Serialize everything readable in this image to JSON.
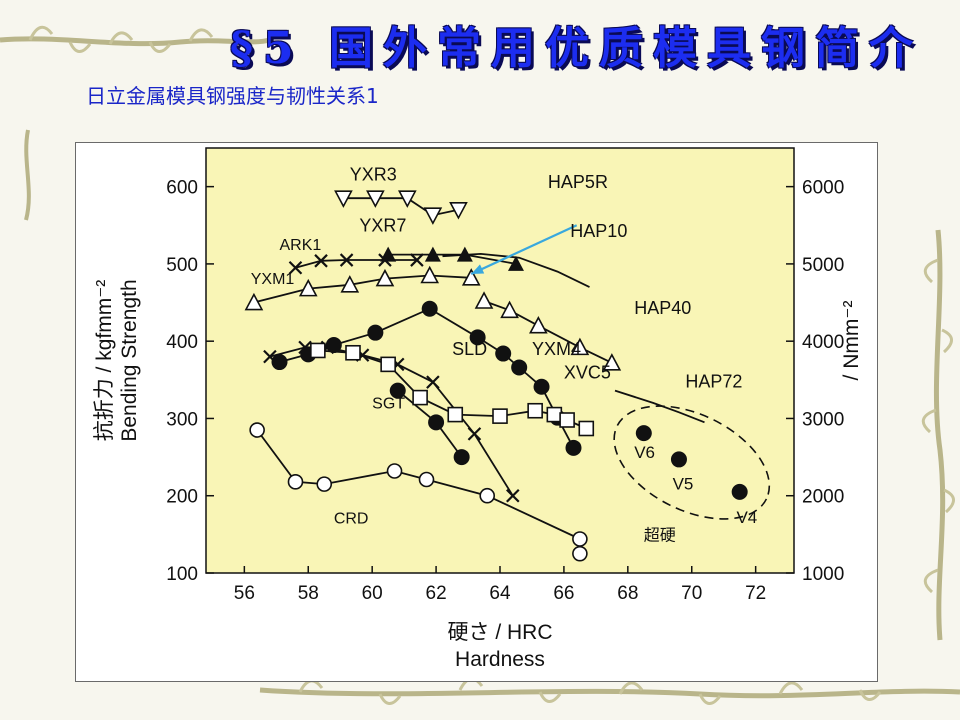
{
  "slide": {
    "title": "§5 国外常用优质模具钢简介",
    "subtitle": "日立金属模具钢强度与韧性关系1"
  },
  "colors": {
    "title": "#1c2df0",
    "subtitle": "#1a26c8",
    "plot_bg": "#f9f5b6",
    "ink": "#111111",
    "arrow": "#39a8de"
  },
  "chart_data": {
    "type": "scatter",
    "xlabel": "硬さ / HRC",
    "xlabel2": "Hardness",
    "ylabel": "抗折力 / kgfmm⁻²",
    "ylabel2": "Bending Strength",
    "y2label": "/ Nmm⁻²",
    "xlim": [
      54.8,
      73.2
    ],
    "ylim": [
      100,
      650
    ],
    "y2lim": [
      1000,
      6500
    ],
    "xticks": [
      56,
      58,
      60,
      62,
      64,
      66,
      68,
      70,
      72
    ],
    "yticks": [
      100,
      200,
      300,
      400,
      500,
      600
    ],
    "y2ticks": [
      1000,
      2000,
      3000,
      4000,
      5000,
      6000
    ],
    "grid": false,
    "series": [
      {
        "name": "YXR3",
        "marker": "tri-down-open",
        "line": true,
        "points": [
          [
            59.1,
            585
          ],
          [
            60.1,
            585
          ],
          [
            61.1,
            585
          ],
          [
            61.9,
            563
          ],
          [
            62.7,
            570
          ]
        ]
      },
      {
        "name": "YXR7",
        "marker": "tri-up-filled",
        "line": true,
        "points": [
          [
            60.5,
            512
          ],
          [
            61.9,
            512
          ],
          [
            62.9,
            512
          ],
          [
            64.5,
            500
          ]
        ]
      },
      {
        "name": "ARK1",
        "marker": "x",
        "line": true,
        "points": [
          [
            57.6,
            495
          ],
          [
            58.4,
            504
          ],
          [
            59.2,
            505
          ],
          [
            60.4,
            505
          ],
          [
            61.4,
            505
          ]
        ]
      },
      {
        "name": "YXM1",
        "marker": "tri-up-open",
        "line": true,
        "points": [
          [
            56.3,
            450
          ],
          [
            58.0,
            468
          ],
          [
            59.3,
            473
          ],
          [
            60.4,
            481
          ],
          [
            61.8,
            485
          ],
          [
            63.1,
            482
          ]
        ]
      },
      {
        "name": "HAP10",
        "marker": "none",
        "line": true,
        "points": [
          [
            62.2,
            510
          ],
          [
            63.4,
            513
          ],
          [
            64.6,
            508
          ],
          [
            65.8,
            490
          ],
          [
            66.8,
            470
          ]
        ]
      },
      {
        "name": "HAP40",
        "marker": "tri-up-open",
        "line": true,
        "points": [
          [
            63.5,
            452
          ],
          [
            64.3,
            440
          ],
          [
            65.2,
            420
          ],
          [
            66.5,
            392
          ],
          [
            67.5,
            372
          ]
        ]
      },
      {
        "name": "HAP72",
        "marker": "none",
        "line": true,
        "points": [
          [
            67.6,
            336
          ],
          [
            68.8,
            320
          ],
          [
            69.6,
            308
          ],
          [
            70.4,
            295
          ]
        ]
      },
      {
        "name": "SLD",
        "marker": "x",
        "line": true,
        "points": [
          [
            56.8,
            380
          ],
          [
            57.9,
            392
          ],
          [
            58.6,
            392
          ],
          [
            59.7,
            382
          ],
          [
            60.8,
            370
          ],
          [
            61.9,
            347
          ],
          [
            63.2,
            280
          ],
          [
            64.4,
            200
          ]
        ]
      },
      {
        "name": "YXM4",
        "marker": "circle-filled",
        "line": true,
        "points": [
          [
            57.1,
            373
          ],
          [
            58.0,
            383
          ],
          [
            58.8,
            395
          ],
          [
            60.1,
            411
          ],
          [
            61.8,
            442
          ],
          [
            63.3,
            405
          ],
          [
            64.1,
            384
          ],
          [
            64.6,
            366
          ],
          [
            65.3,
            341
          ],
          [
            65.8,
            301
          ],
          [
            66.3,
            262
          ]
        ]
      },
      {
        "name": "XVC5",
        "marker": "square-open",
        "line": true,
        "points": [
          [
            58.3,
            388
          ],
          [
            59.4,
            385
          ],
          [
            60.5,
            370
          ],
          [
            61.5,
            327
          ],
          [
            62.6,
            305
          ],
          [
            64.0,
            303
          ],
          [
            65.1,
            310
          ],
          [
            65.7,
            305
          ],
          [
            66.1,
            298
          ],
          [
            66.7,
            287
          ]
        ]
      },
      {
        "name": "SGT",
        "marker": "circle-filled",
        "line": true,
        "points": [
          [
            60.8,
            336
          ],
          [
            62.0,
            295
          ],
          [
            62.8,
            250
          ]
        ]
      },
      {
        "name": "CRD",
        "marker": "circle-open",
        "line": true,
        "points": [
          [
            56.4,
            285
          ],
          [
            57.6,
            218
          ],
          [
            58.5,
            215
          ],
          [
            60.7,
            232
          ],
          [
            61.7,
            221
          ],
          [
            63.6,
            200
          ],
          [
            66.5,
            144
          ],
          [
            66.5,
            125
          ]
        ]
      },
      {
        "name": "超硬",
        "marker": "circle-filled",
        "line": false,
        "points": [
          [
            68.5,
            281
          ],
          [
            69.6,
            247
          ],
          [
            71.5,
            205
          ]
        ]
      }
    ],
    "annotations": [
      {
        "text": "YXR3",
        "x": 59.3,
        "y": 608,
        "size": 18
      },
      {
        "text": "YXR7",
        "x": 59.6,
        "y": 542,
        "size": 18
      },
      {
        "text": "ARK1",
        "x": 57.1,
        "y": 518,
        "size": 16
      },
      {
        "text": "YXM1",
        "x": 56.2,
        "y": 474,
        "size": 16
      },
      {
        "text": "HAP5R",
        "x": 65.5,
        "y": 598,
        "size": 18
      },
      {
        "text": "HAP10",
        "x": 66.2,
        "y": 535,
        "size": 18
      },
      {
        "text": "HAP40",
        "x": 68.2,
        "y": 435,
        "size": 18
      },
      {
        "text": "HAP72",
        "x": 69.8,
        "y": 340,
        "size": 18
      },
      {
        "text": "SLD",
        "x": 62.5,
        "y": 382,
        "size": 18
      },
      {
        "text": "YXM4",
        "x": 65.0,
        "y": 382,
        "size": 18
      },
      {
        "text": "XVC5",
        "x": 66.0,
        "y": 352,
        "size": 18
      },
      {
        "text": "SGT",
        "x": 60.0,
        "y": 313,
        "size": 16
      },
      {
        "text": "CRD",
        "x": 58.8,
        "y": 164,
        "size": 16
      },
      {
        "text": "超硬",
        "x": 68.5,
        "y": 142,
        "size": 16
      },
      {
        "text": "V6",
        "x": 68.2,
        "y": 249,
        "size": 17
      },
      {
        "text": "V5",
        "x": 69.4,
        "y": 208,
        "size": 17
      },
      {
        "text": "V4",
        "x": 71.4,
        "y": 165,
        "size": 17
      }
    ],
    "arrow": {
      "from": [
        66.4,
        550
      ],
      "to": [
        63.1,
        487
      ]
    },
    "ellipse": {
      "center": [
        70.0,
        243
      ],
      "rx": 2.6,
      "ry": 62,
      "rotate": 26
    }
  }
}
